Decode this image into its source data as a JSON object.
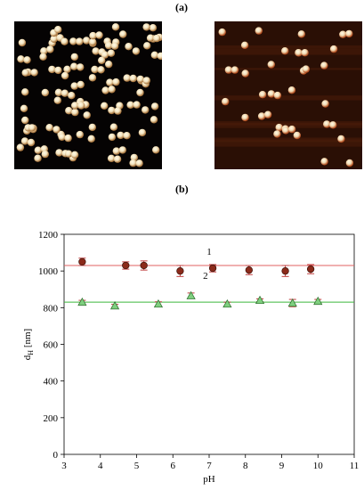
{
  "panel_labels": {
    "top": "(a)",
    "bottom": "(b)"
  },
  "afm_images": [
    {
      "description_icon": "afm-particle-image-dense",
      "colors": {
        "background": "#050303",
        "particle": "#f2e2bd"
      }
    },
    {
      "description_icon": "afm-particle-image-sparse",
      "colors": {
        "background": "#2a0f05",
        "particle": "#f0d8b0"
      }
    }
  ],
  "colors": {
    "series1_marker": "#8b2a1a",
    "series1_line": "#e06060",
    "series2_marker": "#7fcf7f",
    "series2_line": "#3cb83c",
    "error_bar": "#c04040"
  },
  "chart_data": {
    "type": "scatter",
    "title": "",
    "xlabel": "pH",
    "ylabel": "d",
    "ylabel_subscript": "H",
    "ylabel_unit": " [nm]",
    "xlim": [
      3,
      11
    ],
    "ylim": [
      0,
      1200
    ],
    "xticks": [
      "3",
      "4",
      "5",
      "6",
      "7",
      "8",
      "9",
      "10",
      "11"
    ],
    "yticks": [
      "0",
      "200",
      "400",
      "600",
      "800",
      "1000",
      "1200"
    ],
    "grid": false,
    "series": [
      {
        "name": "1",
        "marker": "circle",
        "x": [
          3.5,
          4.7,
          5.2,
          6.2,
          7.1,
          8.1,
          9.1,
          9.8
        ],
        "y": [
          1050,
          1030,
          1030,
          1000,
          1015,
          1005,
          1000,
          1010
        ],
        "err": [
          20,
          20,
          25,
          30,
          20,
          25,
          30,
          25
        ],
        "fit_line": 1030
      },
      {
        "name": "2",
        "marker": "triangle",
        "x": [
          3.5,
          4.4,
          5.6,
          6.5,
          7.5,
          8.4,
          9.3,
          10.0
        ],
        "y": [
          830,
          810,
          820,
          865,
          820,
          840,
          825,
          835
        ],
        "err": [
          10,
          8,
          12,
          15,
          10,
          8,
          20,
          10
        ],
        "fit_line": 830
      }
    ]
  }
}
